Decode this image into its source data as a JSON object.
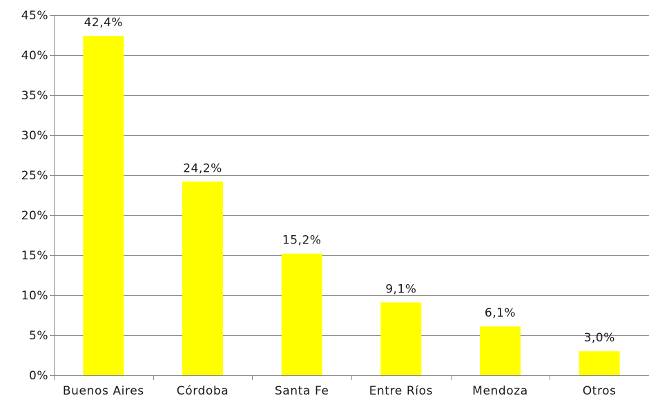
{
  "chart_data": {
    "type": "bar",
    "title": "",
    "xlabel": "",
    "ylabel": "",
    "categories": [
      "Buenos Aires",
      "Córdoba",
      "Santa Fe",
      "Entre Ríos",
      "Mendoza",
      "Otros"
    ],
    "values": [
      42.4,
      24.2,
      15.2,
      9.1,
      6.1,
      3.0
    ],
    "data_labels": [
      "42,4%",
      "24,2%",
      "15,2%",
      "9,1%",
      "6,1%",
      "3,0%"
    ],
    "ylim": [
      0,
      45
    ],
    "y_ticks": [
      0,
      5,
      10,
      15,
      20,
      25,
      30,
      35,
      40,
      45
    ],
    "y_tick_labels": [
      "0%",
      "5%",
      "10%",
      "15%",
      "20%",
      "25%",
      "30%",
      "35%",
      "40%",
      "45%"
    ],
    "grid": true,
    "legend": "none",
    "colors": {
      "bar": "#ffff00",
      "grid": "#8c8c8c",
      "axis": "#8c8c8c",
      "text": "#1a1a1a"
    }
  }
}
